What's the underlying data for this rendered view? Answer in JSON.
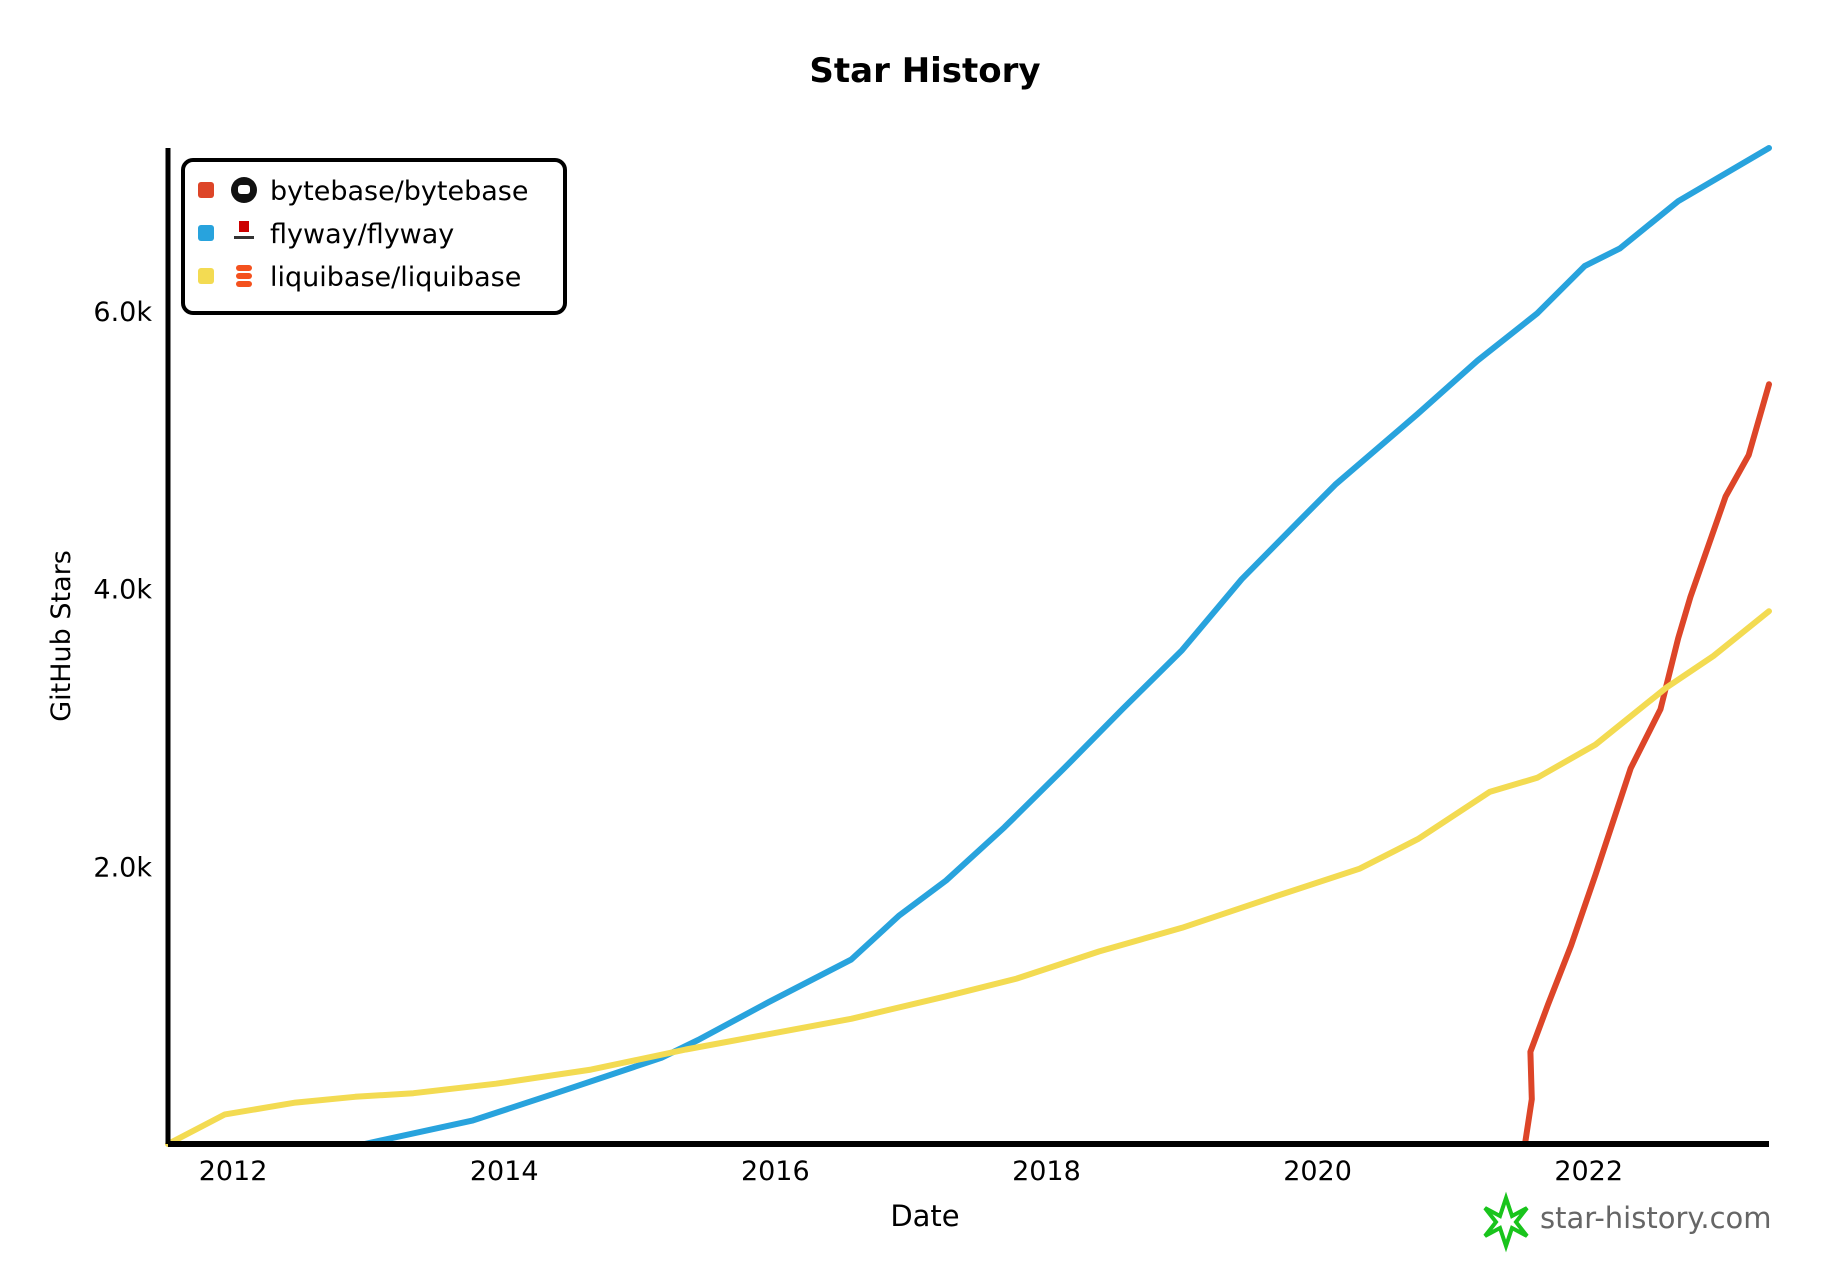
{
  "chart_data": {
    "type": "line",
    "title": "Star History",
    "xlabel": "Date",
    "ylabel": "GitHub Stars",
    "xlim": [
      2011.52,
      2023.33
    ],
    "ylim": [
      0,
      7174
    ],
    "x_ticks": [
      "2012",
      "2014",
      "2016",
      "2018",
      "2020",
      "2022"
    ],
    "y_ticks": [
      "2.0k",
      "4.0k",
      "6.0k"
    ],
    "grid": false,
    "legend_position": "top-left",
    "watermark": "star-history.com",
    "series": [
      {
        "name": "bytebase/bytebase",
        "color": "#dd4528",
        "icon": "github-icon",
        "x": [
          2021.53,
          2021.58,
          2021.57,
          2021.7,
          2021.87,
          2022.05,
          2022.31,
          2022.53,
          2022.66,
          2022.75,
          2023.01,
          2023.18,
          2023.33
        ],
        "y": [
          0,
          323,
          664,
          1004,
          1430,
          1940,
          2706,
          3132,
          3643,
          3940,
          4664,
          4962,
          5472
        ]
      },
      {
        "name": "flyway/flyway",
        "color": "#28a3dd",
        "icon": "flyway-logo-icon",
        "x": [
          2012.97,
          2013.77,
          2014.38,
          2015.16,
          2015.43,
          2015.95,
          2016.56,
          2016.91,
          2017.26,
          2017.69,
          2018.13,
          2018.56,
          2019.0,
          2019.44,
          2019.87,
          2020.13,
          2020.74,
          2021.18,
          2021.62,
          2021.97,
          2022.23,
          2022.66,
          2023.33
        ],
        "y": [
          0,
          170,
          366,
          621,
          749,
          1021,
          1328,
          1643,
          1898,
          2281,
          2706,
          3132,
          3557,
          4068,
          4494,
          4749,
          5260,
          5643,
          5983,
          6323,
          6451,
          6791,
          7174
        ]
      },
      {
        "name": "liquibase/liquibase",
        "color": "#f3db52",
        "icon": "liquibase-logo-icon",
        "x": [
          2011.52,
          2011.94,
          2012.46,
          2012.9,
          2013.33,
          2013.94,
          2014.64,
          2015.34,
          2015.95,
          2016.56,
          2017.26,
          2017.78,
          2018.39,
          2019.0,
          2019.7,
          2020.31,
          2020.74,
          2021.27,
          2021.62,
          2022.05,
          2022.57,
          2022.92,
          2023.33
        ],
        "y": [
          0,
          213,
          298,
          340,
          366,
          434,
          536,
          681,
          791,
          902,
          1064,
          1191,
          1387,
          1557,
          1787,
          1983,
          2196,
          2536,
          2638,
          2877,
          3285,
          3515,
          3838
        ]
      }
    ]
  }
}
